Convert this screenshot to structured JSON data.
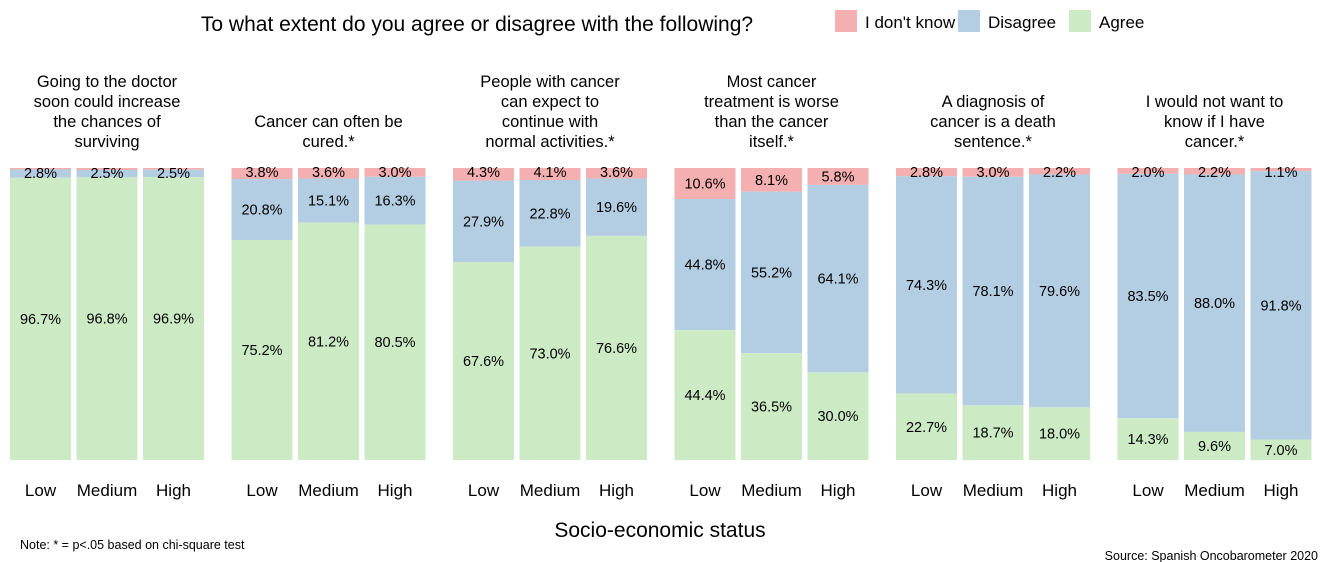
{
  "chart_data": {
    "type": "bar",
    "stacked": true,
    "percent_stacked": true,
    "title": "To what extent do you agree or disagree with the following?",
    "xlabel": "Socio-economic status",
    "note": "Note: * = p<.05 based on chi-square test",
    "source": "Source: Spanish Oncobarometer 2020",
    "legend_position": "top-right",
    "legend": [
      {
        "name": "I don't know",
        "color": "#f4b0b0"
      },
      {
        "name": "Disagree",
        "color": "#b3cde3"
      },
      {
        "name": "Agree",
        "color": "#ccebc5"
      }
    ],
    "categories": [
      "Low",
      "Medium",
      "High"
    ],
    "panels": [
      {
        "title_lines": [
          "Going to the doctor",
          "soon could increase",
          "the chances of",
          "surviving"
        ],
        "bars": [
          {
            "category": "Low",
            "dontknow": 0.5,
            "disagree": 2.8,
            "agree": 96.7,
            "dontknow_label": "",
            "disagree_label": "2.8%",
            "agree_label": "96.7%"
          },
          {
            "category": "Medium",
            "dontknow": 0.7,
            "disagree": 2.5,
            "agree": 96.8,
            "dontknow_label": "",
            "disagree_label": "2.5%",
            "agree_label": "96.8%"
          },
          {
            "category": "High",
            "dontknow": 0.6,
            "disagree": 2.5,
            "agree": 96.9,
            "dontknow_label": "",
            "disagree_label": "2.5%",
            "agree_label": "96.9%"
          }
        ]
      },
      {
        "title_lines": [
          "Cancer can often be",
          "cured.*"
        ],
        "bars": [
          {
            "category": "Low",
            "dontknow": 3.8,
            "disagree": 20.8,
            "agree": 75.2,
            "dontknow_label": "3.8%",
            "disagree_label": "20.8%",
            "agree_label": "75.2%"
          },
          {
            "category": "Medium",
            "dontknow": 3.6,
            "disagree": 15.1,
            "agree": 81.2,
            "dontknow_label": "3.6%",
            "disagree_label": "15.1%",
            "agree_label": "81.2%"
          },
          {
            "category": "High",
            "dontknow": 3.0,
            "disagree": 16.3,
            "agree": 80.5,
            "dontknow_label": "3.0%",
            "disagree_label": "16.3%",
            "agree_label": "80.5%"
          }
        ]
      },
      {
        "title_lines": [
          "People with cancer",
          "can expect to",
          "continue with",
          "normal activities.*"
        ],
        "bars": [
          {
            "category": "Low",
            "dontknow": 4.3,
            "disagree": 27.9,
            "agree": 67.6,
            "dontknow_label": "4.3%",
            "disagree_label": "27.9%",
            "agree_label": "67.6%"
          },
          {
            "category": "Medium",
            "dontknow": 4.1,
            "disagree": 22.8,
            "agree": 73.0,
            "dontknow_label": "4.1%",
            "disagree_label": "22.8%",
            "agree_label": "73.0%"
          },
          {
            "category": "High",
            "dontknow": 3.6,
            "disagree": 19.6,
            "agree": 76.6,
            "dontknow_label": "3.6%",
            "disagree_label": "19.6%",
            "agree_label": "76.6%"
          }
        ]
      },
      {
        "title_lines": [
          "Most cancer",
          "treatment is worse",
          "than the cancer",
          "itself.*"
        ],
        "bars": [
          {
            "category": "Low",
            "dontknow": 10.6,
            "disagree": 44.8,
            "agree": 44.4,
            "dontknow_label": "10.6%",
            "disagree_label": "44.8%",
            "agree_label": "44.4%"
          },
          {
            "category": "Medium",
            "dontknow": 8.1,
            "disagree": 55.2,
            "agree": 36.5,
            "dontknow_label": "8.1%",
            "disagree_label": "55.2%",
            "agree_label": "36.5%"
          },
          {
            "category": "High",
            "dontknow": 5.8,
            "disagree": 64.1,
            "agree": 30.0,
            "dontknow_label": "5.8%",
            "disagree_label": "64.1%",
            "agree_label": "30.0%"
          }
        ]
      },
      {
        "title_lines": [
          "A diagnosis of",
          "cancer is a death",
          "sentence.*"
        ],
        "bars": [
          {
            "category": "Low",
            "dontknow": 2.8,
            "disagree": 74.3,
            "agree": 22.7,
            "dontknow_label": "2.8%",
            "disagree_label": "74.3%",
            "agree_label": "22.7%"
          },
          {
            "category": "Medium",
            "dontknow": 3.0,
            "disagree": 78.1,
            "agree": 18.7,
            "dontknow_label": "3.0%",
            "disagree_label": "78.1%",
            "agree_label": "18.7%"
          },
          {
            "category": "High",
            "dontknow": 2.2,
            "disagree": 79.6,
            "agree": 18.0,
            "dontknow_label": "2.2%",
            "disagree_label": "79.6%",
            "agree_label": "18.0%"
          }
        ]
      },
      {
        "title_lines": [
          "I would not want to",
          "know if I have",
          "cancer.*"
        ],
        "bars": [
          {
            "category": "Low",
            "dontknow": 2.0,
            "disagree": 83.5,
            "agree": 14.3,
            "dontknow_label": "2.0%",
            "disagree_label": "83.5%",
            "agree_label": "14.3%"
          },
          {
            "category": "Medium",
            "dontknow": 2.2,
            "disagree": 88.0,
            "agree": 9.6,
            "dontknow_label": "2.2%",
            "disagree_label": "88.0%",
            "agree_label": "9.6%"
          },
          {
            "category": "High",
            "dontknow": 1.1,
            "disagree": 91.8,
            "agree": 7.0,
            "dontknow_label": "1.1%",
            "disagree_label": "91.8%",
            "agree_label": "7.0%"
          }
        ]
      }
    ]
  }
}
